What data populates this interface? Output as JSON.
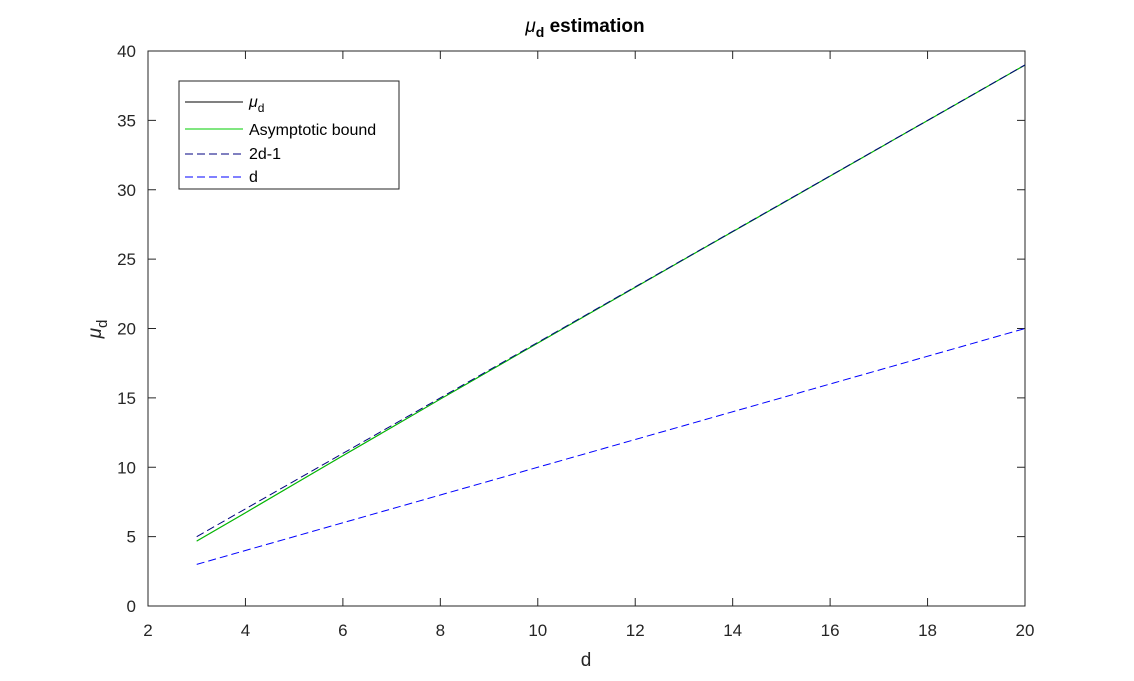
{
  "chart_data": {
    "type": "line",
    "title": {
      "symbol": "μ",
      "sub": "d",
      "text": " estimation"
    },
    "xlabel": "d",
    "ylabel": {
      "symbol": "μ",
      "sub": "d"
    },
    "xlim": [
      2,
      20
    ],
    "ylim": [
      0,
      40
    ],
    "xticks": [
      2,
      4,
      6,
      8,
      10,
      12,
      14,
      16,
      18,
      20
    ],
    "yticks": [
      0,
      5,
      10,
      15,
      20,
      25,
      30,
      35,
      40
    ],
    "grid": false,
    "legend_position": "top-left",
    "series": [
      {
        "key": "mu",
        "name": "μ",
        "name_sub": "d",
        "color": "#000000",
        "style": "solid",
        "x": [
          3,
          4,
          5,
          6,
          7,
          8,
          9,
          10,
          11,
          12,
          13,
          14,
          15,
          16,
          17,
          18,
          19,
          20
        ],
        "y": [
          4.68,
          6.72,
          8.78,
          10.83,
          12.87,
          14.91,
          16.93,
          18.95,
          20.96,
          22.97,
          24.98,
          26.98,
          28.98,
          30.99,
          32.99,
          34.99,
          36.99,
          38.99
        ]
      },
      {
        "key": "asymptotic",
        "name": "Asymptotic bound",
        "color": "#00cc00",
        "style": "solid",
        "x": [
          3,
          4,
          5,
          6,
          7,
          8,
          9,
          10,
          11,
          12,
          13,
          14,
          15,
          16,
          17,
          18,
          19,
          20
        ],
        "y": [
          4.68,
          6.72,
          8.78,
          10.83,
          12.87,
          14.91,
          16.93,
          18.95,
          20.96,
          22.97,
          24.98,
          26.98,
          28.98,
          30.99,
          32.99,
          34.99,
          36.99,
          38.99
        ]
      },
      {
        "key": "two_d_minus_1",
        "name": "2d-1",
        "color": "#000080",
        "style": "dashed",
        "x": [
          3,
          20
        ],
        "y": [
          5,
          39
        ]
      },
      {
        "key": "d",
        "name": "d",
        "color": "#0000ff",
        "style": "dashed",
        "x": [
          3,
          20
        ],
        "y": [
          3,
          20
        ]
      }
    ]
  }
}
